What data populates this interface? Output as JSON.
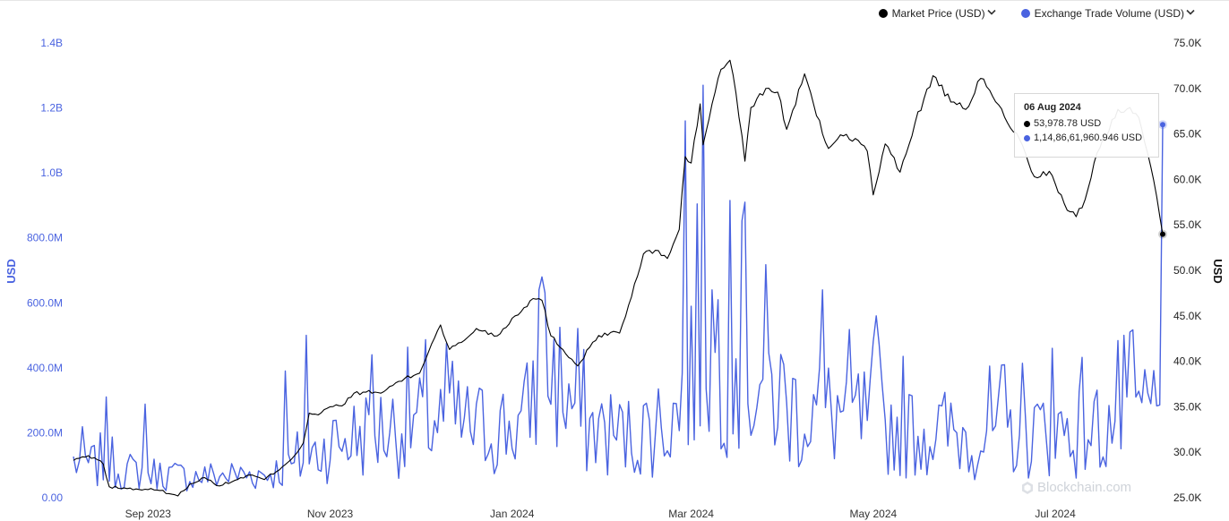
{
  "legend": {
    "items": [
      {
        "label": "Market Price (USD)",
        "color": "#000000",
        "icon": "chevron-down-icon"
      },
      {
        "label": "Exchange Trade Volume (USD)",
        "color": "#4a63e0",
        "icon": "chevron-down-icon"
      }
    ]
  },
  "tooltip": {
    "date": "06 Aug 2024",
    "price": "53,978.78 USD",
    "volume": "1,14,86,61,960.946 USD"
  },
  "watermark": "Blockchain.com",
  "chart_data": {
    "type": "line",
    "x_ticks": [
      "Sep 2023",
      "Nov 2023",
      "Jan 2024",
      "Mar 2024",
      "May 2024",
      "Jul 2024"
    ],
    "x_range": [
      "2023-08-07",
      "2024-08-06"
    ],
    "y_left": {
      "label": "USD",
      "ticks": [
        "0.00",
        "200.0M",
        "400.0M",
        "600.0M",
        "800.0M",
        "1.0B",
        "1.2B",
        "1.4B"
      ],
      "range": [
        0,
        1400000000
      ],
      "color": "#4a63e0"
    },
    "y_right": {
      "label": "USD",
      "ticks": [
        "25.0K",
        "30.0K",
        "35.0K",
        "40.0K",
        "45.0K",
        "50.0K",
        "55.0K",
        "60.0K",
        "65.0K",
        "70.0K",
        "75.0K"
      ],
      "range": [
        25000,
        75000
      ]
    },
    "grid": false,
    "legend_position": "top-right",
    "series": [
      {
        "name": "Market Price (USD)",
        "axis": "right",
        "color": "#000000",
        "points": [
          [
            "2023-08-07",
            29100
          ],
          [
            "2023-08-10",
            29500
          ],
          [
            "2023-08-14",
            29400
          ],
          [
            "2023-08-17",
            28700
          ],
          [
            "2023-08-19",
            26200
          ],
          [
            "2023-08-25",
            26000
          ],
          [
            "2023-09-01",
            25900
          ],
          [
            "2023-09-05",
            25800
          ],
          [
            "2023-09-11",
            25200
          ],
          [
            "2023-09-15",
            26500
          ],
          [
            "2023-09-20",
            27200
          ],
          [
            "2023-09-25",
            26300
          ],
          [
            "2023-09-30",
            26900
          ],
          [
            "2023-10-05",
            27500
          ],
          [
            "2023-10-10",
            27000
          ],
          [
            "2023-10-16",
            28400
          ],
          [
            "2023-10-20",
            29600
          ],
          [
            "2023-10-23",
            31000
          ],
          [
            "2023-10-25",
            34300
          ],
          [
            "2023-10-28",
            34100
          ],
          [
            "2023-11-01",
            35000
          ],
          [
            "2023-11-05",
            35100
          ],
          [
            "2023-11-09",
            36500
          ],
          [
            "2023-11-13",
            36600
          ],
          [
            "2023-11-18",
            36500
          ],
          [
            "2023-11-24",
            37800
          ],
          [
            "2023-12-01",
            38700
          ],
          [
            "2023-12-05",
            41900
          ],
          [
            "2023-12-08",
            44000
          ],
          [
            "2023-12-11",
            41300
          ],
          [
            "2023-12-16",
            42300
          ],
          [
            "2023-12-20",
            43600
          ],
          [
            "2023-12-27",
            42800
          ],
          [
            "2024-01-02",
            45000
          ],
          [
            "2024-01-08",
            46900
          ],
          [
            "2024-01-11",
            46700
          ],
          [
            "2024-01-14",
            42800
          ],
          [
            "2024-01-18",
            41300
          ],
          [
            "2024-01-23",
            39500
          ],
          [
            "2024-01-28",
            42100
          ],
          [
            "2024-02-01",
            43100
          ],
          [
            "2024-02-06",
            43100
          ],
          [
            "2024-02-10",
            47100
          ],
          [
            "2024-02-14",
            51800
          ],
          [
            "2024-02-18",
            52200
          ],
          [
            "2024-02-22",
            51300
          ],
          [
            "2024-02-26",
            54500
          ],
          [
            "2024-02-28",
            62500
          ],
          [
            "2024-03-01",
            61800
          ],
          [
            "2024-03-04",
            68300
          ],
          [
            "2024-03-05",
            63800
          ],
          [
            "2024-03-08",
            68300
          ],
          [
            "2024-03-11",
            72100
          ],
          [
            "2024-03-14",
            73100
          ],
          [
            "2024-03-16",
            69500
          ],
          [
            "2024-03-19",
            62000
          ],
          [
            "2024-03-21",
            67900
          ],
          [
            "2024-03-26",
            70000
          ],
          [
            "2024-03-30",
            69600
          ],
          [
            "2024-04-02",
            65500
          ],
          [
            "2024-04-08",
            71600
          ],
          [
            "2024-04-12",
            67000
          ],
          [
            "2024-04-16",
            63400
          ],
          [
            "2024-04-20",
            64900
          ],
          [
            "2024-04-25",
            64500
          ],
          [
            "2024-04-29",
            63100
          ],
          [
            "2024-05-01",
            58300
          ],
          [
            "2024-05-05",
            63900
          ],
          [
            "2024-05-10",
            60800
          ],
          [
            "2024-05-15",
            66200
          ],
          [
            "2024-05-21",
            71400
          ],
          [
            "2024-05-27",
            68500
          ],
          [
            "2024-06-01",
            67700
          ],
          [
            "2024-06-06",
            71100
          ],
          [
            "2024-06-12",
            68200
          ],
          [
            "2024-06-15",
            66200
          ],
          [
            "2024-06-18",
            65100
          ],
          [
            "2024-06-24",
            60300
          ],
          [
            "2024-06-29",
            60900
          ],
          [
            "2024-07-05",
            56600
          ],
          [
            "2024-07-08",
            55900
          ],
          [
            "2024-07-11",
            57800
          ],
          [
            "2024-07-15",
            62900
          ],
          [
            "2024-07-22",
            67700
          ],
          [
            "2024-07-26",
            67900
          ],
          [
            "2024-07-29",
            66800
          ],
          [
            "2024-08-02",
            61400
          ],
          [
            "2024-08-04",
            58100
          ],
          [
            "2024-08-06",
            53978.78
          ]
        ]
      },
      {
        "name": "Exchange Trade Volume (USD)",
        "axis": "left",
        "color": "#4a63e0",
        "seed": 7,
        "anchors": [
          [
            "2023-08-07",
            120000000
          ],
          [
            "2023-08-25",
            90000000
          ],
          [
            "2023-09-15",
            70000000
          ],
          [
            "2023-10-10",
            80000000
          ],
          [
            "2023-10-20",
            100000000
          ],
          [
            "2023-11-01",
            180000000
          ],
          [
            "2023-11-15",
            220000000
          ],
          [
            "2023-12-05",
            260000000
          ],
          [
            "2023-12-20",
            230000000
          ],
          [
            "2024-01-05",
            240000000
          ],
          [
            "2024-01-11",
            480000000
          ],
          [
            "2024-01-25",
            240000000
          ],
          [
            "2024-02-10",
            200000000
          ],
          [
            "2024-02-25",
            280000000
          ],
          [
            "2024-03-06",
            560000000
          ],
          [
            "2024-03-20",
            430000000
          ],
          [
            "2024-04-05",
            290000000
          ],
          [
            "2024-04-20",
            280000000
          ],
          [
            "2024-05-10",
            230000000
          ],
          [
            "2024-06-01",
            210000000
          ],
          [
            "2024-06-25",
            220000000
          ],
          [
            "2024-07-15",
            230000000
          ],
          [
            "2024-08-04",
            300000000
          ],
          [
            "2024-08-06",
            1148661960.946
          ]
        ],
        "peaks": [
          [
            "2023-08-18",
            310000000
          ],
          [
            "2023-08-31",
            288000000
          ],
          [
            "2023-10-17",
            390000000
          ],
          [
            "2023-10-24",
            500000000
          ],
          [
            "2023-11-15",
            440000000
          ],
          [
            "2023-12-12",
            420000000
          ],
          [
            "2024-01-10",
            640000000
          ],
          [
            "2024-01-11",
            680000000
          ],
          [
            "2024-02-28",
            1160000000
          ],
          [
            "2024-03-05",
            1270000000
          ],
          [
            "2024-03-14",
            915000000
          ],
          [
            "2024-03-19",
            910000000
          ],
          [
            "2024-04-14",
            640000000
          ],
          [
            "2024-05-02",
            560000000
          ],
          [
            "2024-06-30",
            460000000
          ],
          [
            "2024-07-24",
            500000000
          ],
          [
            "2024-08-06",
            1148661960.946
          ]
        ]
      }
    ]
  }
}
